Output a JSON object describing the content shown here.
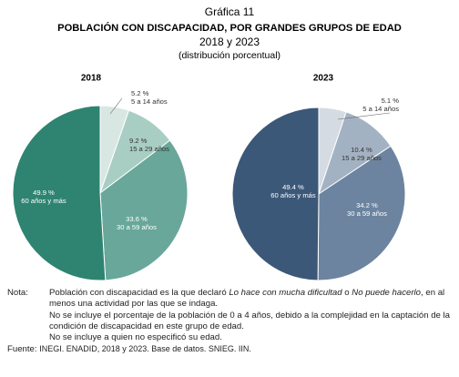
{
  "header": {
    "figure": "Gráfica 11",
    "title": "POBLACIÓN CON DISCAPACIDAD, POR GRANDES GRUPOS DE EDAD",
    "years": "2018 y 2023",
    "subtitle": "(distribución porcentual)"
  },
  "chart_data": [
    {
      "type": "pie",
      "title": "2018",
      "categories": [
        "5 a 14 años",
        "15 a 29 años",
        "30 a 59 años",
        "60 años y más"
      ],
      "values": [
        5.2,
        9.2,
        33.6,
        49.9
      ],
      "value_labels": [
        "5.2 %",
        "9.2 %",
        "33.6 %",
        "49.9 %"
      ],
      "colors": [
        "#d9e7e3",
        "#a8cec3",
        "#68a799",
        "#2e8470"
      ]
    },
    {
      "type": "pie",
      "title": "2023",
      "categories": [
        "5 a 14 años",
        "15 a 29 años",
        "30 a 59 años",
        "60 años y más"
      ],
      "values": [
        5.1,
        10.4,
        34.2,
        49.4
      ],
      "value_labels": [
        "5.1 %",
        "10.4 %",
        "34.2 %",
        "49.4 %"
      ],
      "colors": [
        "#d4dbe3",
        "#a3b2c2",
        "#6c849f",
        "#3b5878"
      ]
    }
  ],
  "notes": {
    "label": "Nota:",
    "items": [
      [
        "Población con discapacidad es la que declaró ",
        "Lo hace con mucha dificultad",
        " o ",
        "No puede hacerlo",
        ", en al menos una actividad por las que se indaga."
      ],
      "No se incluye el porcentaje de la población de 0 a 4 años, debido a la complejidad en la captación de la condición de discapacidad en este grupo de edad.",
      "No se incluye a quien no especificó su edad."
    ]
  },
  "source": {
    "label": "Fuente:",
    "text": "INEGI. ENADID, 2018 y 2023. Base de datos. SNIEG. IIN."
  }
}
